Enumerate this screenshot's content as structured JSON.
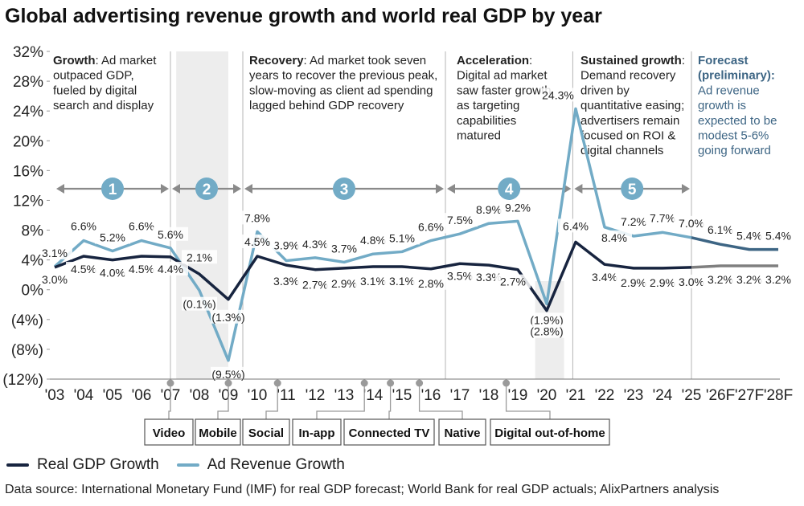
{
  "title": "Global advertising revenue growth and world real GDP by year",
  "legend": {
    "gdp_label": "Real GDP Growth",
    "ad_label": "Ad Revenue Growth"
  },
  "source": "Data source: International Monetary Fund (IMF) for real GDP forecast; World Bank for real GDP actuals; AlixPartners analysis",
  "colors": {
    "gdp": "#17243f",
    "gdp_forecast": "#7f7f7f",
    "ad": "#72abc6",
    "ad_forecast": "#3d6584",
    "phase_marker": "#72abc6",
    "shade": "#ededed"
  },
  "chart_data": {
    "type": "line",
    "title": "Global advertising revenue growth and world real GDP by year",
    "x": [
      "'03",
      "'04",
      "'05",
      "'06",
      "'07",
      "'08",
      "'09",
      "'10",
      "'11",
      "'12",
      "'13",
      "'14",
      "'15",
      "'16",
      "'17",
      "'18",
      "'19",
      "'20",
      "'21",
      "'22",
      "'23",
      "'24",
      "'25",
      "'26F",
      "'27F",
      "'28F"
    ],
    "y_ticks": [
      "32%",
      "28%",
      "24%",
      "20%",
      "16%",
      "12%",
      "8%",
      "4%",
      "0%",
      "(4%)",
      "(8%)",
      "(12%)"
    ],
    "ylim": [
      -12,
      32
    ],
    "series": [
      {
        "name": "Real GDP Growth",
        "values": [
          3.0,
          4.5,
          4.0,
          4.5,
          4.4,
          2.1,
          -1.3,
          4.5,
          3.3,
          2.7,
          2.9,
          3.1,
          3.1,
          2.8,
          3.5,
          3.3,
          2.7,
          -2.8,
          6.4,
          3.4,
          2.9,
          2.9,
          3.0,
          3.2,
          3.2,
          3.2
        ],
        "labels": [
          "3.0%",
          "4.5%",
          "4.0%",
          "4.5%",
          "4.4%",
          "2.1%",
          "(1.3%)",
          "4.5%",
          "3.3%",
          "2.7%",
          "2.9%",
          "3.1%",
          "3.1%",
          "2.8%",
          "3.5%",
          "3.3%",
          "2.7%",
          "(2.8%)",
          "6.4%",
          "3.4%",
          "2.9%",
          "2.9%",
          "3.0%",
          "3.2%",
          "3.2%",
          "3.2%"
        ],
        "forecast_from_index": 22
      },
      {
        "name": "Ad Revenue Growth",
        "values": [
          3.1,
          6.6,
          5.2,
          6.6,
          5.6,
          -0.1,
          -9.5,
          7.8,
          3.9,
          4.3,
          3.7,
          4.8,
          5.1,
          6.6,
          7.5,
          8.9,
          9.2,
          -1.9,
          24.3,
          8.4,
          7.2,
          7.7,
          7.0,
          6.1,
          5.4,
          5.4
        ],
        "labels": [
          "3.1%",
          "6.6%",
          "5.2%",
          "6.6%",
          "5.6%",
          "(0.1%)",
          "(9.5%)",
          "7.8%",
          "3.9%",
          "4.3%",
          "3.7%",
          "4.8%",
          "5.1%",
          "6.6%",
          "7.5%",
          "8.9%",
          "9.2%",
          "(1.9%)",
          "24.3%",
          "8.4%",
          "7.2%",
          "7.7%",
          "7.0%",
          "6.1%",
          "5.4%",
          "5.4%"
        ],
        "forecast_from_index": 22
      }
    ],
    "shaded_years": [
      "'08-'09",
      "'20"
    ],
    "phases": [
      {
        "number": "1",
        "heading": "Growth",
        "lines": [
          "Growth: Ad market",
          "outpaced GDP,",
          "fueled by digital",
          "search and display"
        ]
      },
      {
        "number": "2",
        "heading": "",
        "lines": []
      },
      {
        "number": "3",
        "heading": "Recovery",
        "lines": [
          "Recovery: Ad market took seven",
          "years to recover the previous peak,",
          "slow-moving as client ad spending",
          "lagged behind GDP recovery"
        ]
      },
      {
        "number": "4",
        "heading": "Acceleration",
        "lines": [
          "Acceleration:",
          "Digital ad market",
          "saw faster growth",
          "as targeting",
          "capabilities",
          "matured"
        ]
      },
      {
        "number": "5",
        "heading": "Sustained growth",
        "lines": [
          "Sustained growth:",
          "Demand recovery",
          "driven by",
          "quantitative easing;",
          "advertisers remain",
          "focused on ROI &",
          "digital channels"
        ]
      },
      {
        "number": "",
        "heading": "Forecast (preliminary):",
        "lines": [
          "Forecast",
          "(preliminary):",
          "Ad revenue",
          "growth is",
          "expected to be",
          "modest 5-6%",
          "going forward"
        ]
      }
    ],
    "channels": [
      "Video",
      "Mobile",
      "Social",
      "In-app",
      "Connected TV",
      "Native",
      "Digital out-of-home"
    ]
  }
}
